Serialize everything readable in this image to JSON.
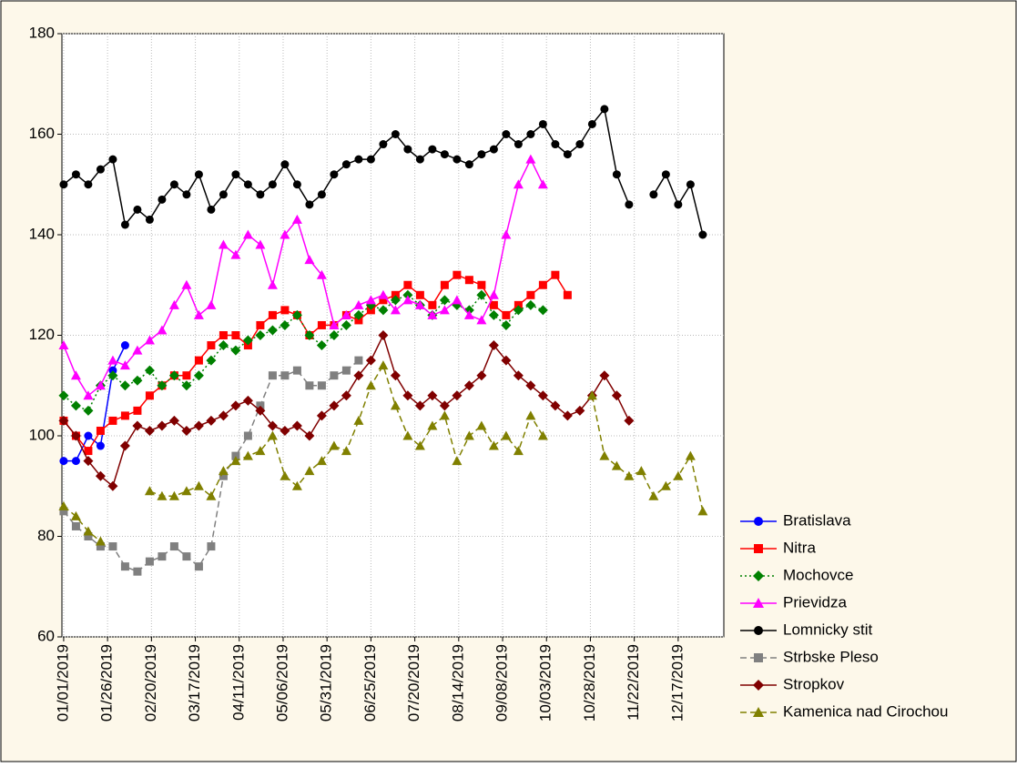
{
  "chart_data": {
    "type": "line",
    "x": [
      "01/01/2019",
      "01/08/2019",
      "01/15/2019",
      "01/22/2019",
      "01/29/2019",
      "02/05/2019",
      "02/12/2019",
      "02/19/2019",
      "02/26/2019",
      "03/05/2019",
      "03/12/2019",
      "03/19/2019",
      "03/26/2019",
      "04/02/2019",
      "04/09/2019",
      "04/16/2019",
      "04/23/2019",
      "04/30/2019",
      "05/07/2019",
      "05/14/2019",
      "05/21/2019",
      "05/28/2019",
      "06/04/2019",
      "06/11/2019",
      "06/18/2019",
      "06/25/2019",
      "07/02/2019",
      "07/09/2019",
      "07/16/2019",
      "07/23/2019",
      "07/30/2019",
      "08/06/2019",
      "08/13/2019",
      "08/20/2019",
      "08/27/2019",
      "09/03/2019",
      "09/10/2019",
      "09/17/2019",
      "09/24/2019",
      "10/01/2019",
      "10/08/2019",
      "10/15/2019",
      "10/22/2019",
      "10/29/2019",
      "11/05/2019",
      "11/12/2019",
      "11/19/2019",
      "11/26/2019",
      "12/03/2019",
      "12/10/2019",
      "12/17/2019",
      "12/24/2019",
      "12/31/2019"
    ],
    "xlim": [
      "12/31/2018",
      "01/12/2020"
    ],
    "xticks": [
      "01/01/2019",
      "01/26/2019",
      "02/20/2019",
      "03/17/2019",
      "04/11/2019",
      "05/06/2019",
      "05/31/2019",
      "06/25/2019",
      "07/20/2019",
      "08/14/2019",
      "09/08/2019",
      "10/03/2019",
      "10/28/2019",
      "11/22/2019",
      "12/17/2019"
    ],
    "ylim": [
      60,
      180
    ],
    "yticks": [
      60,
      80,
      100,
      120,
      140,
      160,
      180
    ],
    "grid": true,
    "series": [
      {
        "name": "Bratislava",
        "color": "#0000ff",
        "marker": "circle",
        "line_style": "solid",
        "values": [
          95,
          95,
          100,
          98,
          113,
          118,
          null,
          null,
          null,
          null,
          null,
          null,
          null,
          null,
          null,
          null,
          null,
          null,
          null,
          null,
          null,
          null,
          null,
          null,
          null,
          null,
          null,
          null,
          null,
          null,
          null,
          null,
          null,
          null,
          null,
          null,
          null,
          null,
          null,
          null,
          null,
          null,
          null,
          null,
          null,
          null,
          null,
          null,
          null,
          null,
          null,
          null,
          null
        ]
      },
      {
        "name": "Nitra",
        "color": "#ff0000",
        "marker": "square",
        "line_style": "solid",
        "values": [
          103,
          100,
          97,
          101,
          103,
          104,
          105,
          108,
          110,
          112,
          112,
          115,
          118,
          120,
          120,
          118,
          122,
          124,
          125,
          124,
          120,
          122,
          122,
          124,
          123,
          125,
          127,
          128,
          130,
          128,
          126,
          130,
          132,
          131,
          130,
          126,
          124,
          126,
          128,
          130,
          132,
          128,
          null,
          null,
          null,
          null,
          null,
          null,
          null,
          null,
          null,
          null,
          null
        ]
      },
      {
        "name": "Mochovce",
        "color": "#008000",
        "marker": "diamond",
        "line_style": "dotted",
        "values": [
          108,
          106,
          105,
          110,
          112,
          110,
          111,
          113,
          110,
          112,
          110,
          112,
          115,
          118,
          117,
          119,
          120,
          121,
          122,
          124,
          120,
          118,
          120,
          122,
          124,
          126,
          125,
          127,
          128,
          126,
          124,
          127,
          126,
          125,
          128,
          124,
          122,
          125,
          126,
          125,
          null,
          null,
          null,
          null,
          null,
          null,
          null,
          null,
          null,
          null,
          null,
          null,
          null
        ]
      },
      {
        "name": "Prievidza",
        "color": "#ff00ff",
        "marker": "triangle",
        "line_style": "solid",
        "values": [
          118,
          112,
          108,
          110,
          115,
          114,
          117,
          119,
          121,
          126,
          130,
          124,
          126,
          138,
          136,
          140,
          138,
          130,
          140,
          143,
          135,
          132,
          122,
          124,
          126,
          127,
          128,
          125,
          127,
          126,
          124,
          125,
          127,
          124,
          123,
          128,
          140,
          150,
          155,
          150,
          null,
          null,
          null,
          null,
          null,
          null,
          null,
          null,
          null,
          null,
          null,
          null,
          null
        ]
      },
      {
        "name": "Lomnicky stit",
        "color": "#000000",
        "marker": "circle",
        "line_style": "solid",
        "values": [
          150,
          152,
          150,
          153,
          155,
          142,
          145,
          143,
          147,
          150,
          148,
          152,
          145,
          148,
          152,
          150,
          148,
          150,
          154,
          150,
          146,
          148,
          152,
          154,
          155,
          155,
          158,
          160,
          157,
          155,
          157,
          156,
          155,
          154,
          156,
          157,
          160,
          158,
          160,
          162,
          158,
          156,
          158,
          162,
          165,
          152,
          146,
          null,
          148,
          152,
          146,
          150,
          140
        ]
      },
      {
        "name": "Strbske Pleso",
        "color": "#808080",
        "marker": "square",
        "line_style": "dashed",
        "values": [
          85,
          82,
          80,
          78,
          78,
          74,
          73,
          75,
          76,
          78,
          76,
          74,
          78,
          92,
          96,
          100,
          106,
          112,
          112,
          113,
          110,
          110,
          112,
          113,
          115,
          null,
          null,
          null,
          null,
          null,
          null,
          null,
          null,
          null,
          null,
          null,
          null,
          null,
          null,
          null,
          null,
          null,
          null,
          null,
          null,
          null,
          null,
          null,
          null,
          null,
          null,
          null,
          null
        ]
      },
      {
        "name": "Stropkov",
        "color": "#800000",
        "marker": "diamond",
        "line_style": "solid",
        "values": [
          103,
          100,
          95,
          92,
          90,
          98,
          102,
          101,
          102,
          103,
          101,
          102,
          103,
          104,
          106,
          107,
          105,
          102,
          101,
          102,
          100,
          104,
          106,
          108,
          112,
          115,
          120,
          112,
          108,
          106,
          108,
          106,
          108,
          110,
          112,
          118,
          115,
          112,
          110,
          108,
          106,
          104,
          105,
          108,
          112,
          108,
          103,
          null,
          null,
          null,
          null,
          null,
          null
        ]
      },
      {
        "name": "Kamenica nad Cirochou",
        "color": "#808000",
        "marker": "triangle",
        "line_style": "dashed",
        "values": [
          86,
          84,
          81,
          79,
          null,
          null,
          null,
          89,
          88,
          88,
          89,
          90,
          88,
          93,
          95,
          96,
          97,
          100,
          92,
          90,
          93,
          95,
          98,
          97,
          103,
          110,
          114,
          106,
          100,
          98,
          102,
          104,
          95,
          100,
          102,
          98,
          100,
          97,
          104,
          100,
          null,
          null,
          null,
          108,
          96,
          94,
          92,
          93,
          88,
          90,
          92,
          96,
          85
        ]
      }
    ]
  }
}
